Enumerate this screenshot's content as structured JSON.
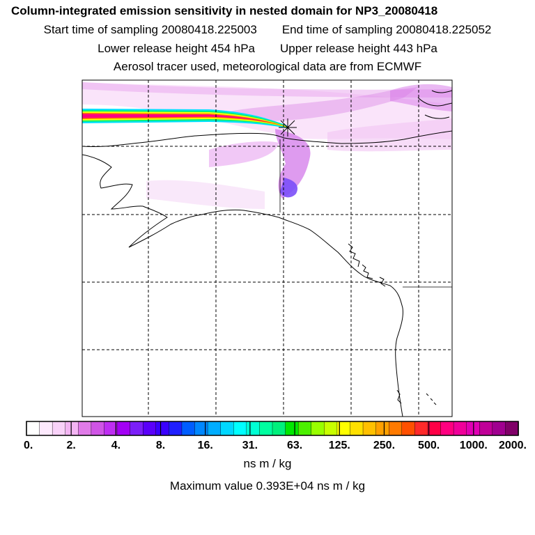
{
  "title": "Column-integrated emission sensitivity in nested domain for NP3_20080418",
  "sampling": {
    "start": "Start time of sampling 20080418.225003",
    "end": "End time of sampling 20080418.225052"
  },
  "release": {
    "lower": "Lower release height  454 hPa",
    "upper": "Upper release height  443 hPa"
  },
  "info": "Aerosol tracer used, meteorological data are from ECMWF",
  "colorbar": {
    "tick_labels": [
      "0.",
      "2.",
      "4.",
      "8.",
      "16.",
      "31.",
      "63.",
      "125.",
      "250.",
      "500.",
      "1000.",
      "2000."
    ],
    "colors": [
      "#ffffff",
      "#fde9fd",
      "#f9d2f9",
      "#f3b5f3",
      "#e07be8",
      "#d055e6",
      "#be2ef2",
      "#a300f5",
      "#7b1ff8",
      "#5a00fa",
      "#3a00ff",
      "#1f1fff",
      "#005dff",
      "#0087ff",
      "#00adff",
      "#00d7ff",
      "#00ffff",
      "#00ffd4",
      "#00ffa0",
      "#00f07c",
      "#00e800",
      "#4cf000",
      "#99ff00",
      "#c8ff00",
      "#ffff00",
      "#ffe000",
      "#ffc000",
      "#ffa000",
      "#ff7a00",
      "#ff5000",
      "#ff2a2a",
      "#ff0046",
      "#ff0080",
      "#f0009a",
      "#e000b4",
      "#c00098",
      "#a00090",
      "#800068"
    ],
    "units": "ns m / kg"
  },
  "max_value": "Maximum value  0.393E+04 ns m / kg",
  "receptor_marker": "receptor-star-icon"
}
